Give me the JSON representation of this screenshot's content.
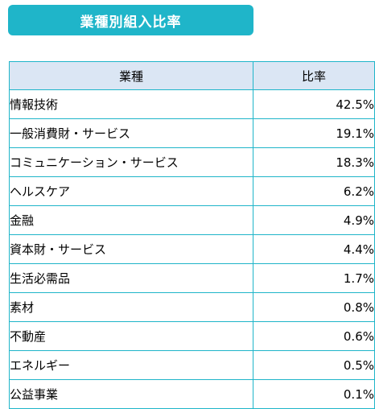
{
  "title": "業種別組入比率",
  "colors": {
    "title_background": "#1fb5c9",
    "header_background": "#dbe6f4",
    "border": "#1fb5c9"
  },
  "table": {
    "headers": [
      "業種",
      "比率"
    ],
    "rows": [
      {
        "sector": "情報技術",
        "ratio": "42.5%"
      },
      {
        "sector": "一般消費財・サービス",
        "ratio": "19.1%"
      },
      {
        "sector": "コミュニケーション・サービス",
        "ratio": "18.3%"
      },
      {
        "sector": "ヘルスケア",
        "ratio": "6.2%"
      },
      {
        "sector": "金融",
        "ratio": "4.9%"
      },
      {
        "sector": "資本財・サービス",
        "ratio": "4.4%"
      },
      {
        "sector": "生活必需品",
        "ratio": "1.7%"
      },
      {
        "sector": "素材",
        "ratio": "0.8%"
      },
      {
        "sector": "不動産",
        "ratio": "0.6%"
      },
      {
        "sector": "エネルギー",
        "ratio": "0.5%"
      },
      {
        "sector": "公益事業",
        "ratio": "0.1%"
      }
    ]
  }
}
